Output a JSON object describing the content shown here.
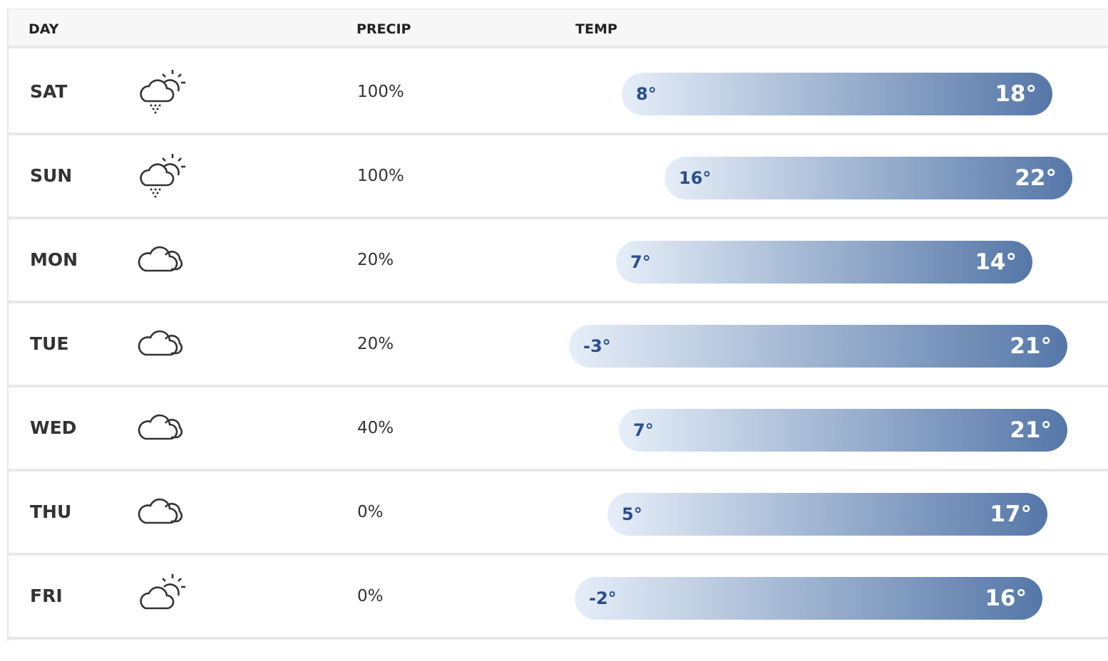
{
  "table": {
    "headers": [
      "DAY",
      "PRECIP",
      "TEMP"
    ],
    "rows": [
      {
        "day": "SAT",
        "precip": "100%",
        "low": "8°",
        "high": "18°"
      },
      {
        "day": "SUN",
        "precip": "100%",
        "low": "16°",
        "high": "22°"
      },
      {
        "day": "MON",
        "precip": "20%",
        "low": "7°",
        "high": "14°"
      },
      {
        "day": "TUE",
        "precip": "20%",
        "low": "-3°",
        "high": "21°"
      },
      {
        "day": "WED",
        "precip": "40%",
        "low": "7°",
        "high": "21°"
      },
      {
        "day": "THU",
        "precip": "0%",
        "low": "5°",
        "high": "17°"
      },
      {
        "day": "FRI",
        "precip": "0%",
        "low": "-2°",
        "high": "16°"
      }
    ]
  }
}
